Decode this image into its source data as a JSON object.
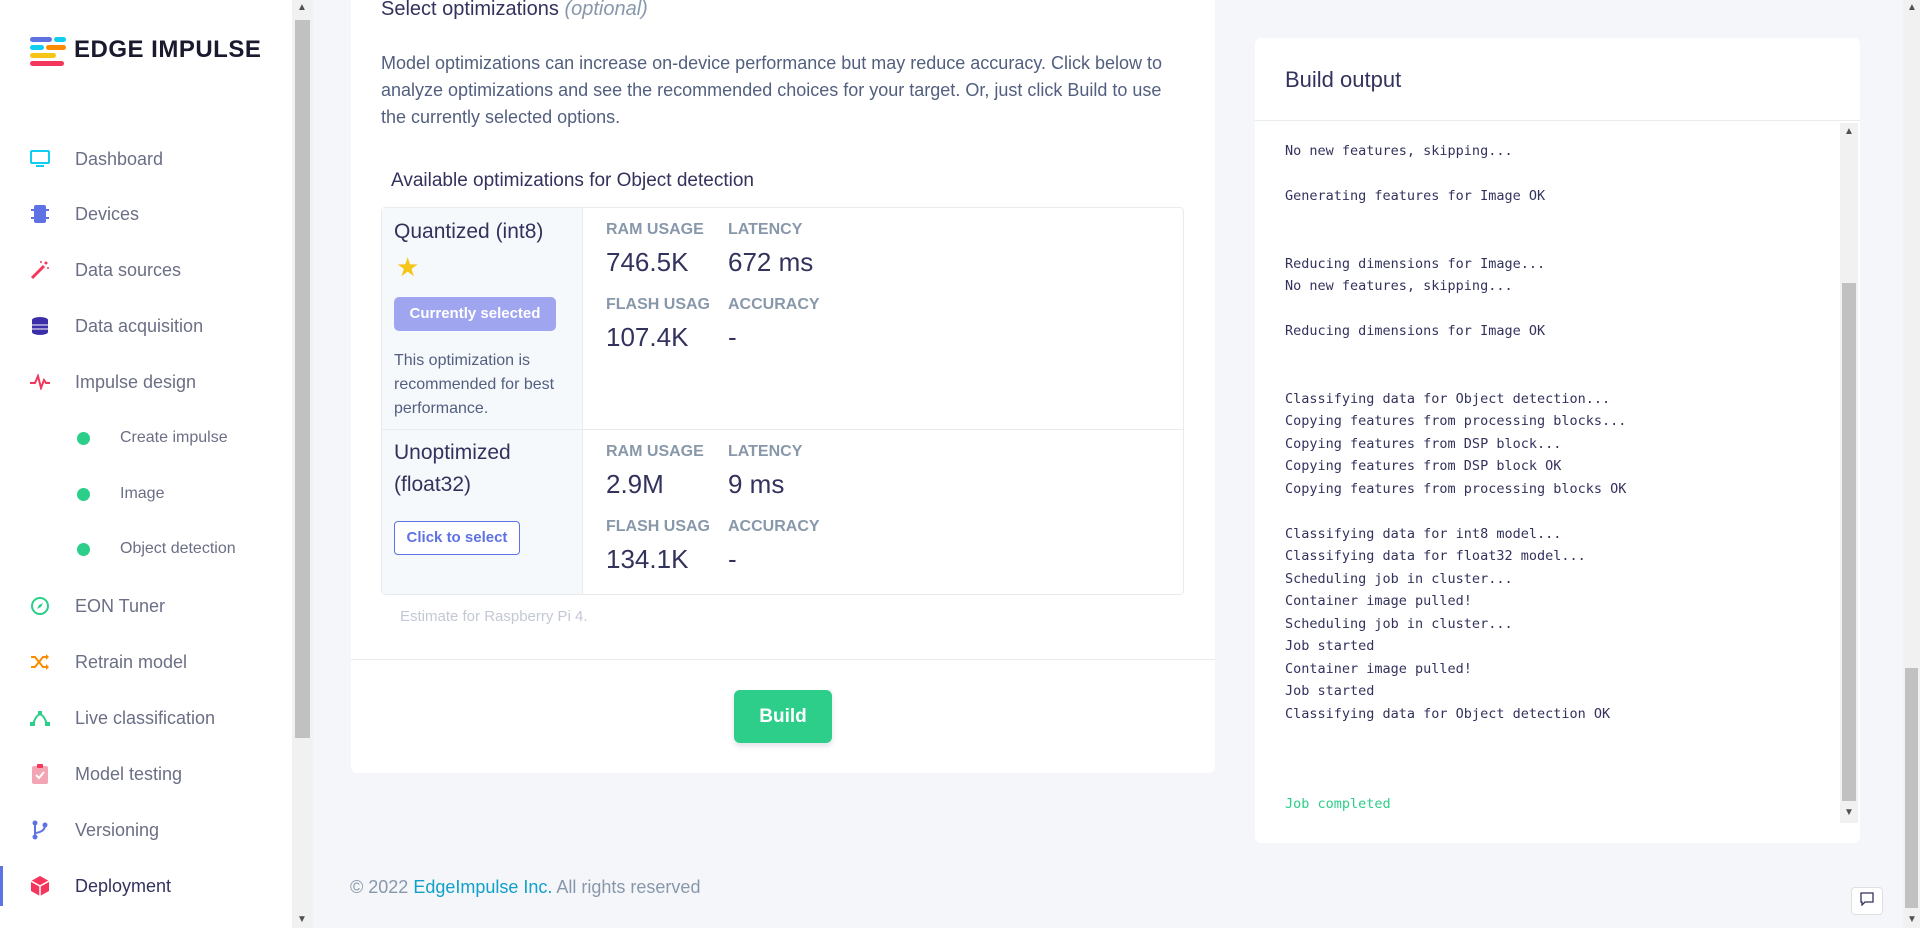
{
  "brand": {
    "name": "EDGE IMPULSE"
  },
  "sidebar": {
    "items": [
      {
        "label": "Dashboard",
        "icon": "monitor-icon",
        "color": "#11cdef"
      },
      {
        "label": "Devices",
        "icon": "chip-icon",
        "color": "#5e72e4"
      },
      {
        "label": "Data sources",
        "icon": "magic-wand-icon",
        "color": "#f5365c"
      },
      {
        "label": "Data acquisition",
        "icon": "database-icon",
        "color": "#3b2ea8"
      },
      {
        "label": "Impulse design",
        "icon": "pulse-icon",
        "color": "#f5365c"
      },
      {
        "label": "Create impulse",
        "sub": true
      },
      {
        "label": "Image",
        "sub": true
      },
      {
        "label": "Object detection",
        "sub": true
      },
      {
        "label": "EON Tuner",
        "icon": "compass-icon",
        "color": "#2dce89"
      },
      {
        "label": "Retrain model",
        "icon": "shuffle-icon",
        "color": "#fb8c00"
      },
      {
        "label": "Live classification",
        "icon": "bezier-icon",
        "color": "#2dce89"
      },
      {
        "label": "Model testing",
        "icon": "clipboard-check-icon",
        "color": "#f3a4b5"
      },
      {
        "label": "Versioning",
        "icon": "branch-icon",
        "color": "#5e72e4"
      },
      {
        "label": "Deployment",
        "icon": "cube-icon",
        "color": "#f5365c",
        "active": true
      }
    ]
  },
  "optimizations": {
    "title": "Select optimizations",
    "title_suffix": "(optional)",
    "description": "Model optimizations can increase on-device performance but may reduce accuracy. Click below to analyze optimizations and see the recommended choices for your target. Or, just click Build to use the currently selected options.",
    "available_title": "Available optimizations for Object detection",
    "rows": [
      {
        "name": "Quantized (int8)",
        "badge": "Currently selected",
        "note": "This optimization is recommended for best performance.",
        "ram_label": "RAM USAGE",
        "ram": "746.5K",
        "latency_label": "LATENCY",
        "latency": "672 ms",
        "flash_label": "FLASH USAGE",
        "flash": "107.4K",
        "accuracy_label": "ACCURACY",
        "accuracy": "-"
      },
      {
        "name_line1": "Unoptimized",
        "name_line2": "(float32)",
        "button": "Click to select",
        "ram_label": "RAM USAGE",
        "ram": "2.9M",
        "latency_label": "LATENCY",
        "latency": "9 ms",
        "flash_label": "FLASH USAGE",
        "flash": "134.1K",
        "accuracy_label": "ACCURACY",
        "accuracy": "-"
      }
    ],
    "estimate_note": "Estimate for Raspberry Pi 4.",
    "build_label": "Build"
  },
  "build_output": {
    "title": "Build output",
    "lines": [
      "No new features, skipping...",
      "",
      "Generating features for Image OK",
      "",
      "",
      "Reducing dimensions for Image...",
      "No new features, skipping...",
      "",
      "Reducing dimensions for Image OK",
      "",
      "",
      "Classifying data for Object detection...",
      "Copying features from processing blocks...",
      "Copying features from DSP block...",
      "Copying features from DSP block OK",
      "Copying features from processing blocks OK",
      "",
      "Classifying data for int8 model...",
      "Classifying data for float32 model...",
      "Scheduling job in cluster...",
      "Container image pulled!",
      "Scheduling job in cluster...",
      "Job started",
      "Container image pulled!",
      "Job started",
      "Classifying data for Object detection OK",
      "",
      "",
      ""
    ],
    "final_line": "Job completed"
  },
  "footer": {
    "copyright": "© 2022 ",
    "company": "EdgeImpulse Inc.",
    "rights": " All rights reserved"
  },
  "colors": {
    "accent": "#5e72e4",
    "success": "#2dce89",
    "link": "#11a0c8"
  }
}
